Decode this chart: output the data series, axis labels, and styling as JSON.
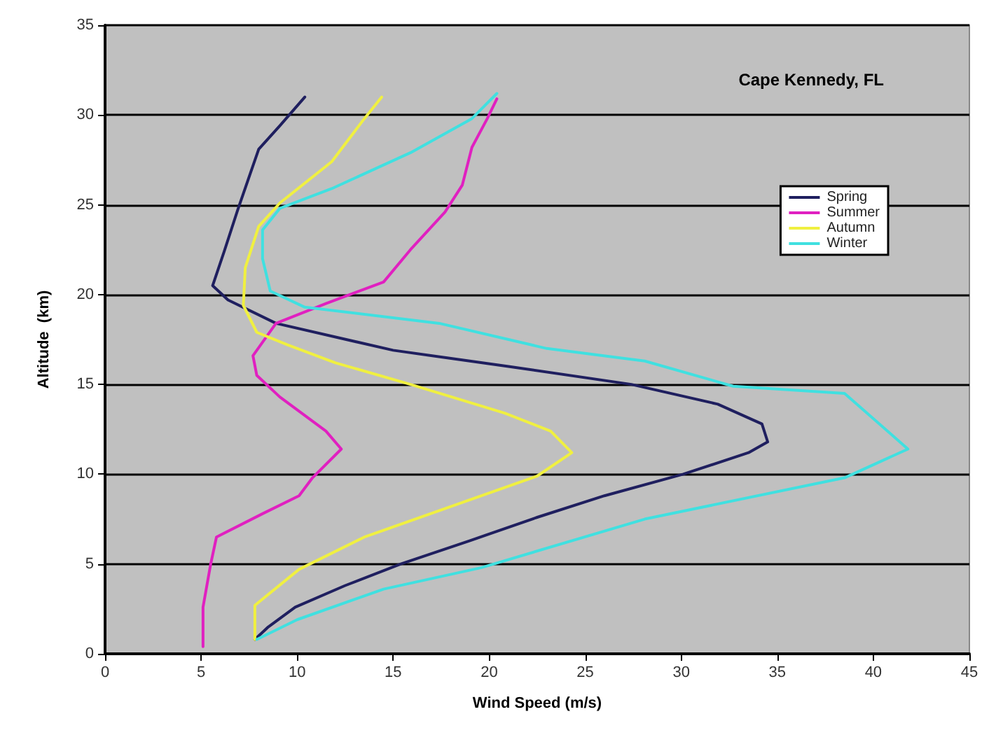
{
  "chart_data": {
    "type": "line",
    "title": "Cape Kennedy, FL",
    "xlabel": "Wind Speed (m/s)",
    "ylabel": "Altitude  (km)",
    "xlim": [
      0,
      45
    ],
    "xticks": [
      0,
      5,
      10,
      15,
      20,
      25,
      30,
      35,
      40,
      45
    ],
    "ylim": [
      0,
      35
    ],
    "yticks": [
      0,
      5,
      10,
      15,
      20,
      25,
      30,
      35
    ],
    "grid": "y",
    "legend": "right",
    "series": [
      {
        "name": "Spring",
        "color": "#1f1f5f",
        "x": [
          7.8,
          8.5,
          9.9,
          12.5,
          15.4,
          19,
          22.5,
          26,
          30.1,
          33.5,
          34.5,
          34.2,
          31.9,
          27.4,
          21,
          15,
          8.9,
          6.4,
          5.6,
          6.2,
          6.9,
          8.0,
          9.1,
          10.4
        ],
        "values": [
          0.8,
          1.5,
          2.6,
          3.8,
          5,
          6.3,
          7.6,
          8.8,
          10,
          11.2,
          11.8,
          12.8,
          13.9,
          15,
          16,
          16.9,
          18.4,
          19.7,
          20.5,
          22.4,
          24.7,
          28.1,
          29.4,
          31
        ]
      },
      {
        "name": "Summer",
        "color": "#e020c0",
        "x": [
          5.1,
          5.1,
          5.5,
          5.8,
          8.2,
          10.1,
          10.8,
          12.3,
          11.5,
          9.1,
          7.9,
          7.7,
          8.9,
          11.5,
          14.5,
          15.9,
          17.7,
          18.6,
          19.1,
          19.9,
          20.4
        ],
        "values": [
          0.4,
          2.6,
          5,
          6.5,
          7.8,
          8.8,
          9.8,
          11.4,
          12.4,
          14.3,
          15.5,
          16.6,
          18.4,
          19.5,
          20.7,
          22.5,
          24.6,
          26.1,
          28.2,
          29.8,
          30.9
        ]
      },
      {
        "name": "Autumn",
        "color": "#f0f040",
        "x": [
          7.8,
          7.8,
          10.1,
          13.5,
          18.8,
          22.5,
          24.3,
          23.2,
          20.8,
          15.9,
          12,
          9.5,
          7.9,
          7.2,
          7.3,
          8.0,
          9.1,
          11.8,
          13.5,
          14.4
        ],
        "values": [
          0.8,
          2.7,
          4.7,
          6.5,
          8.5,
          9.9,
          11.2,
          12.4,
          13.4,
          15,
          16.2,
          17.2,
          17.9,
          19.4,
          21.5,
          23.8,
          25.1,
          27.4,
          29.8,
          31
        ]
      },
      {
        "name": "Winter",
        "color": "#40e0e0",
        "x": [
          7.9,
          10,
          14.5,
          19.6,
          28.1,
          38.5,
          41.8,
          38.5,
          32.7,
          28.1,
          23,
          17.4,
          10.4,
          8.6,
          8.2,
          8.2,
          9.1,
          11.8,
          15.9,
          19.1,
          20.4
        ],
        "values": [
          0.8,
          1.9,
          3.6,
          4.8,
          7.5,
          9.8,
          11.4,
          14.5,
          14.9,
          16.3,
          17,
          18.4,
          19.3,
          20.2,
          22,
          23.6,
          24.8,
          25.9,
          27.9,
          29.8,
          31.2
        ]
      }
    ]
  }
}
